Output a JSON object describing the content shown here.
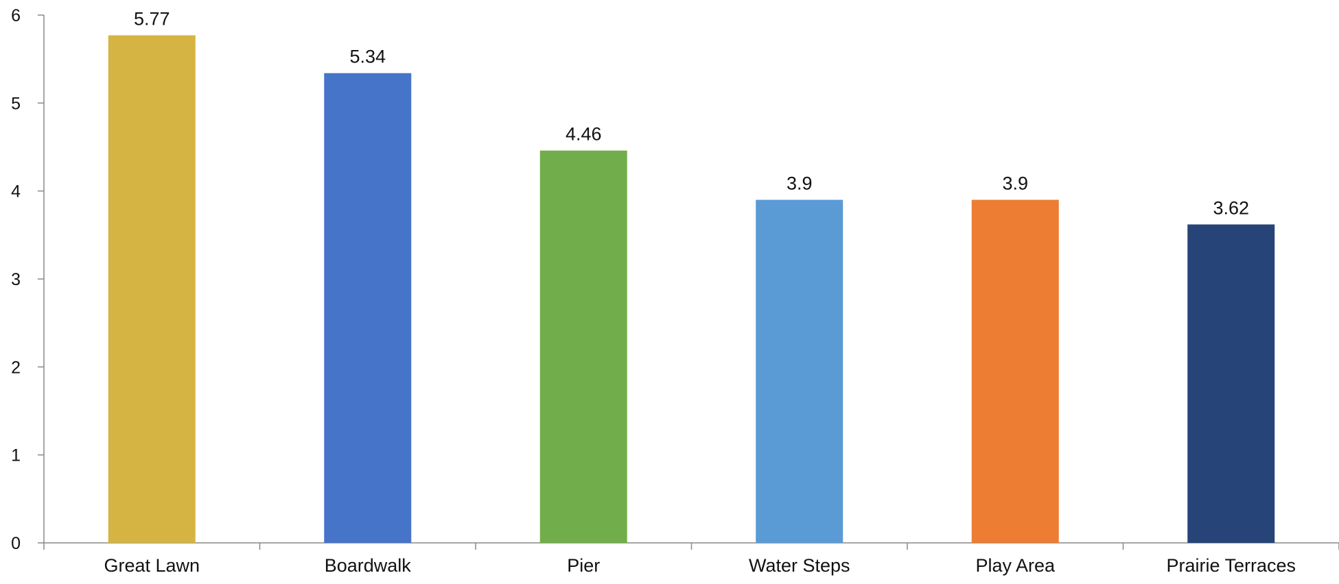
{
  "chart_data": {
    "type": "bar",
    "title": "",
    "xlabel": "",
    "ylabel": "",
    "categories": [
      "Great Lawn",
      "Boardwalk",
      "Pier",
      "Water Steps",
      "Play Area",
      "Prairie Terraces"
    ],
    "values": [
      5.77,
      5.34,
      4.46,
      3.9,
      3.9,
      3.62
    ],
    "data_labels": [
      "5.77",
      "5.34",
      "4.46",
      "3.9",
      "3.9",
      "3.62"
    ],
    "bar_colors": [
      "#d6b443",
      "#4674c8",
      "#72ad4b",
      "#5b9bd5",
      "#ec7d33",
      "#264478"
    ],
    "ylim": [
      0,
      6
    ],
    "yticks": [
      0,
      1,
      2,
      3,
      4,
      5,
      6
    ],
    "grid": false,
    "legend": "none"
  },
  "colors": {
    "axis": "#888888",
    "text": "#111111"
  }
}
